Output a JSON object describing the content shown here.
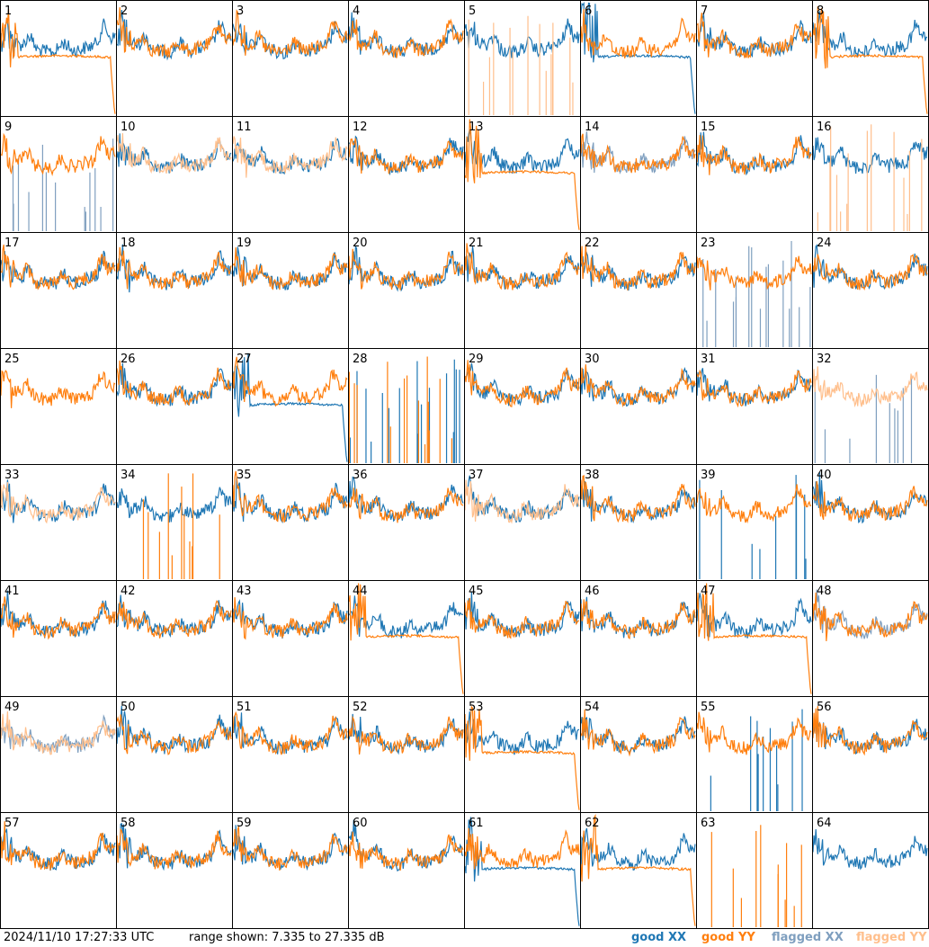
{
  "footer": {
    "timestamp": "2024/11/10 17:27:33 UTC",
    "range_label": "range shown: 7.335 to 27.335 dB",
    "legend": {
      "good_xx": "good XX",
      "good_yy": "good YY",
      "flagged_xx": "flagged XX",
      "flagged_yy": "flagged YY"
    }
  },
  "colors": {
    "good_xx": "#1f77b4",
    "good_yy": "#ff7f0e",
    "flagged_xx": "#7f9fbf",
    "flagged_yy": "#ffbf8c"
  },
  "chart_data": {
    "type": "line",
    "grid_layout": "8x8 small multiples",
    "ylim_db": [
      7.335,
      27.335
    ],
    "panel_labels": [
      "1",
      "2",
      "3",
      "4",
      "5",
      "6",
      "7",
      "8",
      "9",
      "10",
      "11",
      "12",
      "13",
      "14",
      "15",
      "16",
      "17",
      "18",
      "19",
      "20",
      "21",
      "22",
      "23",
      "24",
      "25",
      "26",
      "27",
      "28",
      "29",
      "30",
      "31",
      "32",
      "33",
      "34",
      "35",
      "36",
      "37",
      "38",
      "39",
      "40",
      "41",
      "42",
      "43",
      "44",
      "45",
      "46",
      "47",
      "48",
      "49",
      "50",
      "51",
      "52",
      "53",
      "54",
      "55",
      "56",
      "57",
      "58",
      "59",
      "60",
      "61",
      "62",
      "63",
      "64"
    ],
    "panels": [
      {
        "label": "1",
        "xx": {
          "f": "good",
          "p": "A"
        },
        "yy": {
          "f": "good",
          "p": "B"
        }
      },
      {
        "label": "2",
        "xx": {
          "f": "good",
          "p": "A"
        },
        "yy": {
          "f": "good",
          "p": "A"
        }
      },
      {
        "label": "3",
        "xx": {
          "f": "good",
          "p": "A"
        },
        "yy": {
          "f": "good",
          "p": "A"
        }
      },
      {
        "label": "4",
        "xx": {
          "f": "good",
          "p": "A"
        },
        "yy": {
          "f": "good",
          "p": "A"
        }
      },
      {
        "label": "5",
        "xx": {
          "f": "good",
          "p": "A"
        },
        "yy": {
          "f": "flagged",
          "p": "S"
        }
      },
      {
        "label": "6",
        "xx": {
          "f": "good",
          "p": "B"
        },
        "yy": {
          "f": "good",
          "p": "A"
        }
      },
      {
        "label": "7",
        "xx": {
          "f": "good",
          "p": "A"
        },
        "yy": {
          "f": "good",
          "p": "A"
        }
      },
      {
        "label": "8",
        "xx": {
          "f": "good",
          "p": "A"
        },
        "yy": {
          "f": "good",
          "p": "B"
        }
      },
      {
        "label": "9",
        "xx": {
          "f": "flagged",
          "p": "S"
        },
        "yy": {
          "f": "good",
          "p": "A"
        }
      },
      {
        "label": "10",
        "xx": {
          "f": "good",
          "p": "A"
        },
        "yy": {
          "f": "flagged",
          "p": "A"
        }
      },
      {
        "label": "11",
        "xx": {
          "f": "good",
          "p": "A"
        },
        "yy": {
          "f": "flagged",
          "p": "A"
        }
      },
      {
        "label": "12",
        "xx": {
          "f": "good",
          "p": "A"
        },
        "yy": {
          "f": "good",
          "p": "A"
        }
      },
      {
        "label": "13",
        "xx": {
          "f": "good",
          "p": "A"
        },
        "yy": {
          "f": "good",
          "p": "B"
        }
      },
      {
        "label": "14",
        "xx": {
          "f": "flagged",
          "p": "A"
        },
        "yy": {
          "f": "good",
          "p": "A"
        }
      },
      {
        "label": "15",
        "xx": {
          "f": "good",
          "p": "A"
        },
        "yy": {
          "f": "good",
          "p": "A"
        }
      },
      {
        "label": "16",
        "xx": {
          "f": "good",
          "p": "A"
        },
        "yy": {
          "f": "flagged",
          "p": "S"
        }
      },
      {
        "label": "17",
        "xx": {
          "f": "good",
          "p": "A"
        },
        "yy": {
          "f": "good",
          "p": "A"
        }
      },
      {
        "label": "18",
        "xx": {
          "f": "good",
          "p": "A"
        },
        "yy": {
          "f": "good",
          "p": "A"
        }
      },
      {
        "label": "19",
        "xx": {
          "f": "good",
          "p": "A"
        },
        "yy": {
          "f": "good",
          "p": "A"
        }
      },
      {
        "label": "20",
        "xx": {
          "f": "good",
          "p": "A"
        },
        "yy": {
          "f": "good",
          "p": "A"
        }
      },
      {
        "label": "21",
        "xx": {
          "f": "good",
          "p": "A"
        },
        "yy": {
          "f": "good",
          "p": "A"
        }
      },
      {
        "label": "22",
        "xx": {
          "f": "good",
          "p": "A"
        },
        "yy": {
          "f": "good",
          "p": "A"
        }
      },
      {
        "label": "23",
        "xx": {
          "f": "flagged",
          "p": "S"
        },
        "yy": {
          "f": "good",
          "p": "A"
        }
      },
      {
        "label": "24",
        "xx": {
          "f": "good",
          "p": "A"
        },
        "yy": {
          "f": "good",
          "p": "A"
        }
      },
      {
        "label": "25",
        "xx": {
          "f": "good",
          "p": "N"
        },
        "yy": {
          "f": "good",
          "p": "A"
        }
      },
      {
        "label": "26",
        "xx": {
          "f": "good",
          "p": "A"
        },
        "yy": {
          "f": "good",
          "p": "A"
        }
      },
      {
        "label": "27",
        "xx": {
          "f": "good",
          "p": "B"
        },
        "yy": {
          "f": "good",
          "p": "A"
        }
      },
      {
        "label": "28",
        "xx": {
          "f": "good",
          "p": "S"
        },
        "yy": {
          "f": "good",
          "p": "S"
        }
      },
      {
        "label": "29",
        "xx": {
          "f": "good",
          "p": "A"
        },
        "yy": {
          "f": "good",
          "p": "A"
        }
      },
      {
        "label": "30",
        "xx": {
          "f": "good",
          "p": "A"
        },
        "yy": {
          "f": "good",
          "p": "A"
        }
      },
      {
        "label": "31",
        "xx": {
          "f": "good",
          "p": "A"
        },
        "yy": {
          "f": "good",
          "p": "A"
        }
      },
      {
        "label": "32",
        "xx": {
          "f": "flagged",
          "p": "S"
        },
        "yy": {
          "f": "flagged",
          "p": "A"
        }
      },
      {
        "label": "33",
        "xx": {
          "f": "good",
          "p": "A"
        },
        "yy": {
          "f": "flagged",
          "p": "A"
        }
      },
      {
        "label": "34",
        "xx": {
          "f": "good",
          "p": "A"
        },
        "yy": {
          "f": "good",
          "p": "S"
        }
      },
      {
        "label": "35",
        "xx": {
          "f": "good",
          "p": "A"
        },
        "yy": {
          "f": "good",
          "p": "A"
        }
      },
      {
        "label": "36",
        "xx": {
          "f": "good",
          "p": "A"
        },
        "yy": {
          "f": "good",
          "p": "A"
        }
      },
      {
        "label": "37",
        "xx": {
          "f": "good",
          "p": "A"
        },
        "yy": {
          "f": "flagged",
          "p": "A"
        }
      },
      {
        "label": "38",
        "xx": {
          "f": "good",
          "p": "A"
        },
        "yy": {
          "f": "good",
          "p": "A"
        }
      },
      {
        "label": "39",
        "xx": {
          "f": "good",
          "p": "S"
        },
        "yy": {
          "f": "good",
          "p": "A"
        }
      },
      {
        "label": "40",
        "xx": {
          "f": "good",
          "p": "A"
        },
        "yy": {
          "f": "good",
          "p": "A"
        }
      },
      {
        "label": "41",
        "xx": {
          "f": "good",
          "p": "A"
        },
        "yy": {
          "f": "good",
          "p": "A"
        }
      },
      {
        "label": "42",
        "xx": {
          "f": "good",
          "p": "A"
        },
        "yy": {
          "f": "good",
          "p": "A"
        }
      },
      {
        "label": "43",
        "xx": {
          "f": "good",
          "p": "A"
        },
        "yy": {
          "f": "good",
          "p": "A"
        }
      },
      {
        "label": "44",
        "xx": {
          "f": "good",
          "p": "A"
        },
        "yy": {
          "f": "good",
          "p": "B"
        }
      },
      {
        "label": "45",
        "xx": {
          "f": "good",
          "p": "A"
        },
        "yy": {
          "f": "good",
          "p": "A"
        }
      },
      {
        "label": "46",
        "xx": {
          "f": "good",
          "p": "A"
        },
        "yy": {
          "f": "good",
          "p": "A"
        }
      },
      {
        "label": "47",
        "xx": {
          "f": "good",
          "p": "A"
        },
        "yy": {
          "f": "good",
          "p": "B"
        }
      },
      {
        "label": "48",
        "xx": {
          "f": "flagged",
          "p": "A"
        },
        "yy": {
          "f": "good",
          "p": "A"
        }
      },
      {
        "label": "49",
        "xx": {
          "f": "flagged",
          "p": "A"
        },
        "yy": {
          "f": "flagged",
          "p": "A"
        }
      },
      {
        "label": "50",
        "xx": {
          "f": "good",
          "p": "A"
        },
        "yy": {
          "f": "good",
          "p": "A"
        }
      },
      {
        "label": "51",
        "xx": {
          "f": "good",
          "p": "A"
        },
        "yy": {
          "f": "good",
          "p": "A"
        }
      },
      {
        "label": "52",
        "xx": {
          "f": "good",
          "p": "A"
        },
        "yy": {
          "f": "good",
          "p": "A"
        }
      },
      {
        "label": "53",
        "xx": {
          "f": "good",
          "p": "A"
        },
        "yy": {
          "f": "good",
          "p": "B"
        }
      },
      {
        "label": "54",
        "xx": {
          "f": "good",
          "p": "A"
        },
        "yy": {
          "f": "good",
          "p": "A"
        }
      },
      {
        "label": "55",
        "xx": {
          "f": "good",
          "p": "S"
        },
        "yy": {
          "f": "good",
          "p": "A"
        }
      },
      {
        "label": "56",
        "xx": {
          "f": "good",
          "p": "A"
        },
        "yy": {
          "f": "good",
          "p": "A"
        }
      },
      {
        "label": "57",
        "xx": {
          "f": "good",
          "p": "A"
        },
        "yy": {
          "f": "good",
          "p": "A"
        }
      },
      {
        "label": "58",
        "xx": {
          "f": "good",
          "p": "A"
        },
        "yy": {
          "f": "good",
          "p": "A"
        }
      },
      {
        "label": "59",
        "xx": {
          "f": "good",
          "p": "A"
        },
        "yy": {
          "f": "good",
          "p": "A"
        }
      },
      {
        "label": "60",
        "xx": {
          "f": "good",
          "p": "A"
        },
        "yy": {
          "f": "good",
          "p": "A"
        }
      },
      {
        "label": "61",
        "xx": {
          "f": "good",
          "p": "B"
        },
        "yy": {
          "f": "good",
          "p": "A"
        }
      },
      {
        "label": "62",
        "xx": {
          "f": "good",
          "p": "A"
        },
        "yy": {
          "f": "good",
          "p": "B"
        }
      },
      {
        "label": "63",
        "xx": {
          "f": "good",
          "p": "N"
        },
        "yy": {
          "f": "good",
          "p": "S"
        }
      },
      {
        "label": "64",
        "xx": {
          "f": "good",
          "p": "A"
        },
        "yy": {
          "f": "good",
          "p": "N"
        }
      }
    ]
  }
}
